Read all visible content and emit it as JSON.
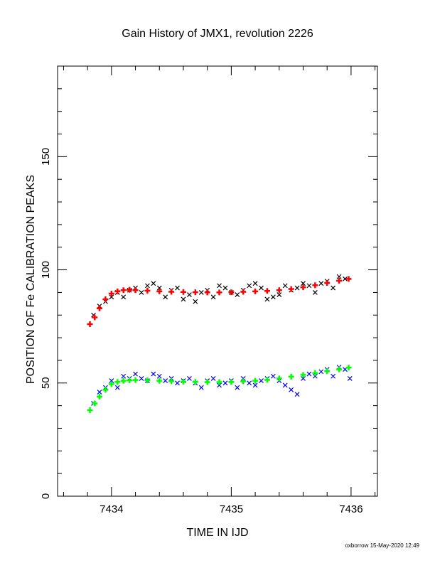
{
  "chart_data": {
    "type": "scatter",
    "title": "Gain History of JMX1, revolution 2226",
    "xlabel": "TIME IN IJD",
    "ylabel": "POSITION OF Fe CALIBRATION PEAKS",
    "xlim": [
      7433.55,
      7436.22
    ],
    "ylim": [
      0,
      190
    ],
    "x_ticks": [
      "7434",
      "7435",
      "7436"
    ],
    "y_ticks": [
      "0",
      "50",
      "100",
      "150"
    ],
    "x_tick_values": [
      7434,
      7435,
      7436
    ],
    "y_tick_values": [
      0,
      50,
      100,
      150
    ],
    "grid": false,
    "footer": "oxborrow 15-May-2020 12:49",
    "series": [
      {
        "color": "#000000",
        "marker": "x",
        "x": [
          7433.85,
          7433.9,
          7433.95,
          7434.0,
          7434.05,
          7434.1,
          7434.15,
          7434.2,
          7434.25,
          7434.3,
          7434.35,
          7434.4,
          7434.45,
          7434.5,
          7434.55,
          7434.6,
          7434.65,
          7434.7,
          7434.75,
          7434.8,
          7434.85,
          7434.9,
          7434.95,
          7435.0,
          7435.05,
          7435.1,
          7435.15,
          7435.2,
          7435.25,
          7435.3,
          7435.35,
          7435.4,
          7435.45,
          7435.5,
          7435.55,
          7435.6,
          7435.65,
          7435.7,
          7435.75,
          7435.8,
          7435.85,
          7435.9,
          7435.95
        ],
        "y": [
          80,
          84,
          86,
          88,
          90,
          88,
          91,
          92,
          90,
          93,
          94,
          92,
          88,
          91,
          92,
          87,
          89,
          86,
          90,
          91,
          88,
          93,
          92,
          90,
          89,
          91,
          93,
          94,
          92,
          87,
          88,
          89,
          93,
          91,
          92,
          94,
          93,
          90,
          94,
          95,
          92,
          97,
          96
        ]
      },
      {
        "color": "#ff0000",
        "marker": "+",
        "x": [
          7433.82,
          7433.86,
          7433.9,
          7433.95,
          7434.0,
          7434.05,
          7434.1,
          7434.15,
          7434.2,
          7434.3,
          7434.4,
          7434.5,
          7434.6,
          7434.7,
          7434.8,
          7434.9,
          7435.0,
          7435.1,
          7435.2,
          7435.3,
          7435.4,
          7435.5,
          7435.6,
          7435.7,
          7435.8,
          7435.9,
          7435.98
        ],
        "y": [
          76,
          79,
          83,
          87,
          89.5,
          90.5,
          91,
          91.2,
          91,
          90.8,
          90.5,
          90.3,
          90.2,
          90.1,
          90,
          90,
          90.1,
          90.3,
          90.5,
          90.7,
          91,
          91.5,
          92.3,
          93.2,
          94.2,
          95.2,
          96
        ]
      },
      {
        "color": "#0000ff",
        "marker": "x",
        "x": [
          7433.85,
          7433.9,
          7433.95,
          7434.0,
          7434.05,
          7434.1,
          7434.15,
          7434.2,
          7434.25,
          7434.3,
          7434.35,
          7434.4,
          7434.45,
          7434.5,
          7434.55,
          7434.6,
          7434.65,
          7434.7,
          7434.75,
          7434.8,
          7434.85,
          7434.9,
          7434.95,
          7435.0,
          7435.05,
          7435.1,
          7435.15,
          7435.2,
          7435.25,
          7435.3,
          7435.35,
          7435.4,
          7435.45,
          7435.5,
          7435.55,
          7435.6,
          7435.65,
          7435.7,
          7435.75,
          7435.8,
          7435.85,
          7435.9,
          7435.95,
          7435.99
        ],
        "y": [
          41,
          46,
          48,
          51,
          48,
          53,
          52,
          54,
          52,
          51,
          54,
          53,
          51,
          52,
          50,
          51,
          52,
          50,
          48,
          51,
          52,
          49,
          50,
          51,
          48,
          52,
          50,
          49,
          51,
          52,
          53,
          51,
          49,
          47,
          45,
          52,
          54,
          53,
          55,
          56,
          53,
          57,
          56,
          52
        ]
      },
      {
        "color": "#00ff00",
        "marker": "+",
        "x": [
          7433.82,
          7433.86,
          7433.9,
          7433.95,
          7434.0,
          7434.05,
          7434.1,
          7434.15,
          7434.2,
          7434.3,
          7434.4,
          7434.5,
          7434.6,
          7434.7,
          7434.8,
          7434.9,
          7435.0,
          7435.1,
          7435.2,
          7435.3,
          7435.4,
          7435.5,
          7435.6,
          7435.7,
          7435.8,
          7435.9,
          7435.98
        ],
        "y": [
          38,
          41,
          44,
          47,
          49.5,
          50.5,
          51,
          51.2,
          51.3,
          51.2,
          51,
          50.8,
          50.6,
          50.5,
          50.4,
          50.4,
          50.5,
          50.7,
          51,
          51.4,
          52,
          52.8,
          53.6,
          54.4,
          55.2,
          56,
          56.8
        ]
      }
    ]
  }
}
